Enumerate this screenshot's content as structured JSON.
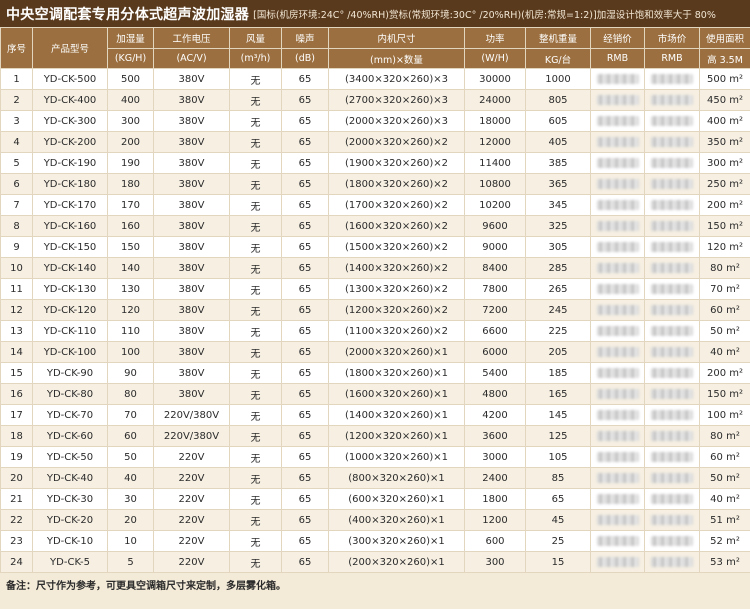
{
  "header": {
    "title": "中央空调配套专用分体式超声波加湿器",
    "subtitle": "[国标(机房环境:24C° /40%RH)赏标(常规环境:30C° /20%RH)(机房:常规=1:2)]加湿设计饱和效率大于 80%"
  },
  "columns": [
    {
      "top": "序号",
      "bottom": ""
    },
    {
      "top": "产品型号",
      "bottom": ""
    },
    {
      "top": "加湿量",
      "bottom": "(KG/H)"
    },
    {
      "top": "工作电压",
      "bottom": "(AC/V)"
    },
    {
      "top": "风量",
      "bottom": "(m³/h)"
    },
    {
      "top": "噪声",
      "bottom": "(dB)"
    },
    {
      "top": "内机尺寸",
      "bottom": "(mm)×数量"
    },
    {
      "top": "功率",
      "bottom": "(W/H)"
    },
    {
      "top": "整机重量",
      "bottom": "KG/台"
    },
    {
      "top": "经销价",
      "bottom": "RMB"
    },
    {
      "top": "市场价",
      "bottom": "RMB"
    },
    {
      "top": "使用面积",
      "bottom": "高 3.5M"
    }
  ],
  "rows": [
    {
      "no": "1",
      "model": "YD-CK-500",
      "cap": "500",
      "volt": "380V",
      "air": "无",
      "noise": "65",
      "size": "(3400×320×260)×3",
      "power": "30000",
      "weight": "1000",
      "area": "500 m²"
    },
    {
      "no": "2",
      "model": "YD-CK-400",
      "cap": "400",
      "volt": "380V",
      "air": "无",
      "noise": "65",
      "size": "(2700×320×260)×3",
      "power": "24000",
      "weight": "805",
      "area": "450 m²"
    },
    {
      "no": "3",
      "model": "YD-CK-300",
      "cap": "300",
      "volt": "380V",
      "air": "无",
      "noise": "65",
      "size": "(2000×320×260)×3",
      "power": "18000",
      "weight": "605",
      "area": "400 m²"
    },
    {
      "no": "4",
      "model": "YD-CK-200",
      "cap": "200",
      "volt": "380V",
      "air": "无",
      "noise": "65",
      "size": "(2000×320×260)×2",
      "power": "12000",
      "weight": "405",
      "area": "350 m²"
    },
    {
      "no": "5",
      "model": "YD-CK-190",
      "cap": "190",
      "volt": "380V",
      "air": "无",
      "noise": "65",
      "size": "(1900×320×260)×2",
      "power": "11400",
      "weight": "385",
      "area": "300 m²"
    },
    {
      "no": "6",
      "model": "YD-CK-180",
      "cap": "180",
      "volt": "380V",
      "air": "无",
      "noise": "65",
      "size": "(1800×320×260)×2",
      "power": "10800",
      "weight": "365",
      "area": "250 m²"
    },
    {
      "no": "7",
      "model": "YD-CK-170",
      "cap": "170",
      "volt": "380V",
      "air": "无",
      "noise": "65",
      "size": "(1700×320×260)×2",
      "power": "10200",
      "weight": "345",
      "area": "200 m²"
    },
    {
      "no": "8",
      "model": "YD-CK-160",
      "cap": "160",
      "volt": "380V",
      "air": "无",
      "noise": "65",
      "size": "(1600×320×260)×2",
      "power": "9600",
      "weight": "325",
      "area": "150 m²"
    },
    {
      "no": "9",
      "model": "YD-CK-150",
      "cap": "150",
      "volt": "380V",
      "air": "无",
      "noise": "65",
      "size": "(1500×320×260)×2",
      "power": "9000",
      "weight": "305",
      "area": "120 m²"
    },
    {
      "no": "10",
      "model": "YD-CK-140",
      "cap": "140",
      "volt": "380V",
      "air": "无",
      "noise": "65",
      "size": "(1400×320×260)×2",
      "power": "8400",
      "weight": "285",
      "area": "80 m²"
    },
    {
      "no": "11",
      "model": "YD-CK-130",
      "cap": "130",
      "volt": "380V",
      "air": "无",
      "noise": "65",
      "size": "(1300×320×260)×2",
      "power": "7800",
      "weight": "265",
      "area": "70 m²"
    },
    {
      "no": "12",
      "model": "YD-CK-120",
      "cap": "120",
      "volt": "380V",
      "air": "无",
      "noise": "65",
      "size": "(1200×320×260)×2",
      "power": "7200",
      "weight": "245",
      "area": "60 m²"
    },
    {
      "no": "13",
      "model": "YD-CK-110",
      "cap": "110",
      "volt": "380V",
      "air": "无",
      "noise": "65",
      "size": "(1100×320×260)×2",
      "power": "6600",
      "weight": "225",
      "area": "50 m²"
    },
    {
      "no": "14",
      "model": "YD-CK-100",
      "cap": "100",
      "volt": "380V",
      "air": "无",
      "noise": "65",
      "size": "(2000×320×260)×1",
      "power": "6000",
      "weight": "205",
      "area": "40 m²"
    },
    {
      "no": "15",
      "model": "YD-CK-90",
      "cap": "90",
      "volt": "380V",
      "air": "无",
      "noise": "65",
      "size": "(1800×320×260)×1",
      "power": "5400",
      "weight": "185",
      "area": "200 m²"
    },
    {
      "no": "16",
      "model": "YD-CK-80",
      "cap": "80",
      "volt": "380V",
      "air": "无",
      "noise": "65",
      "size": "(1600×320×260)×1",
      "power": "4800",
      "weight": "165",
      "area": "150 m²"
    },
    {
      "no": "17",
      "model": "YD-CK-70",
      "cap": "70",
      "volt": "220V/380V",
      "air": "无",
      "noise": "65",
      "size": "(1400×320×260)×1",
      "power": "4200",
      "weight": "145",
      "area": "100 m²"
    },
    {
      "no": "18",
      "model": "YD-CK-60",
      "cap": "60",
      "volt": "220V/380V",
      "air": "无",
      "noise": "65",
      "size": "(1200×320×260)×1",
      "power": "3600",
      "weight": "125",
      "area": "80 m²"
    },
    {
      "no": "19",
      "model": "YD-CK-50",
      "cap": "50",
      "volt": "220V",
      "air": "无",
      "noise": "65",
      "size": "(1000×320×260)×1",
      "power": "3000",
      "weight": "105",
      "area": "60 m²"
    },
    {
      "no": "20",
      "model": "YD-CK-40",
      "cap": "40",
      "volt": "220V",
      "air": "无",
      "noise": "65",
      "size": "(800×320×260)×1",
      "power": "2400",
      "weight": "85",
      "area": "50 m²"
    },
    {
      "no": "21",
      "model": "YD-CK-30",
      "cap": "30",
      "volt": "220V",
      "air": "无",
      "noise": "65",
      "size": "(600×320×260)×1",
      "power": "1800",
      "weight": "65",
      "area": "40 m²"
    },
    {
      "no": "22",
      "model": "YD-CK-20",
      "cap": "20",
      "volt": "220V",
      "air": "无",
      "noise": "65",
      "size": "(400×320×260)×1",
      "power": "1200",
      "weight": "45",
      "area": "51 m²"
    },
    {
      "no": "23",
      "model": "YD-CK-10",
      "cap": "10",
      "volt": "220V",
      "air": "无",
      "noise": "65",
      "size": "(300×320×260)×1",
      "power": "600",
      "weight": "25",
      "area": "52 m²"
    },
    {
      "no": "24",
      "model": "YD-CK-5",
      "cap": "5",
      "volt": "220V",
      "air": "无",
      "noise": "65",
      "size": "(200×320×260)×1",
      "power": "300",
      "weight": "15",
      "area": "53 m²"
    }
  ],
  "footer": {
    "note": "备注：尺寸作为参考，可更具空调箱尺寸来定制，多层雾化箱。"
  }
}
